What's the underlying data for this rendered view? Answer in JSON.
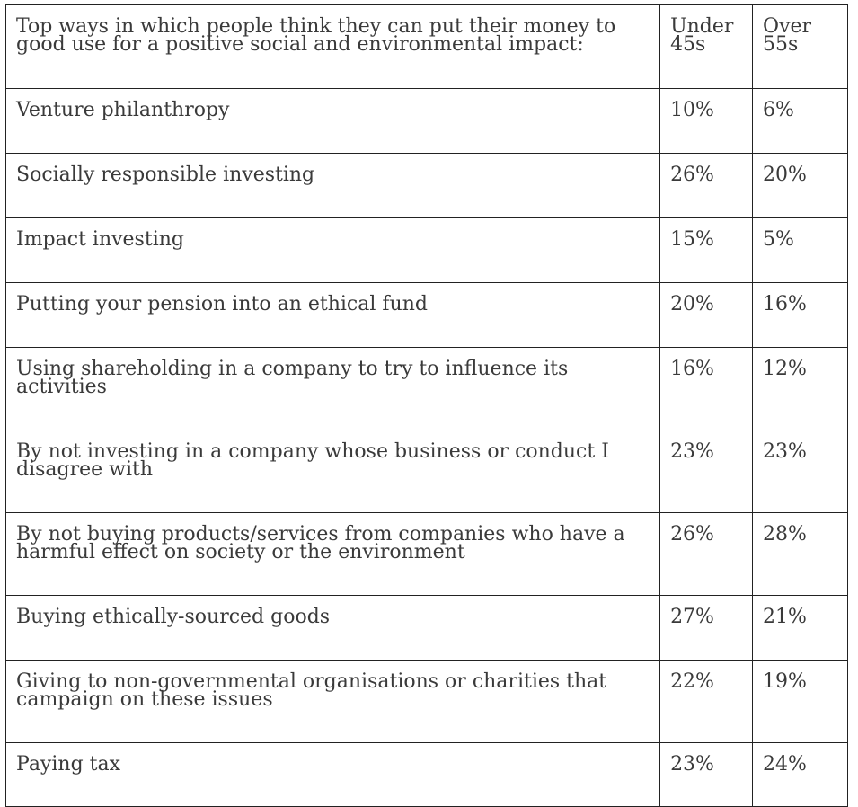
{
  "table": {
    "header": {
      "label": "Top ways in which people think they can put their money to good use for a positive social and environmental impact:",
      "under": "Under 45s",
      "over": "Over 55s"
    },
    "rows": [
      {
        "label": "Venture philanthropy",
        "under": "10%",
        "over": "6%"
      },
      {
        "label": "Socially responsible investing",
        "under": "26%",
        "over": "20%"
      },
      {
        "label": "Impact investing",
        "under": "15%",
        "over": "5%"
      },
      {
        "label": "Putting your pension into an ethical fund",
        "under": "20%",
        "over": "16%"
      },
      {
        "label": "Using shareholding in a company to try to influence its activities",
        "under": "16%",
        "over": "12%"
      },
      {
        "label": "By not investing in a company whose business or conduct I disagree with",
        "under": "23%",
        "over": "23%"
      },
      {
        "label": "By not buying products/services from companies who have a harmful effect on society or the environment",
        "under": "26%",
        "over": "28%"
      },
      {
        "label": "Buying ethically-sourced goods",
        "under": "27%",
        "over": "21%"
      },
      {
        "label": "Giving to non-governmental organisations or charities that campaign on these issues",
        "under": "22%",
        "over": "19%"
      },
      {
        "label": "Paying tax",
        "under": "23%",
        "over": "24%"
      }
    ]
  }
}
